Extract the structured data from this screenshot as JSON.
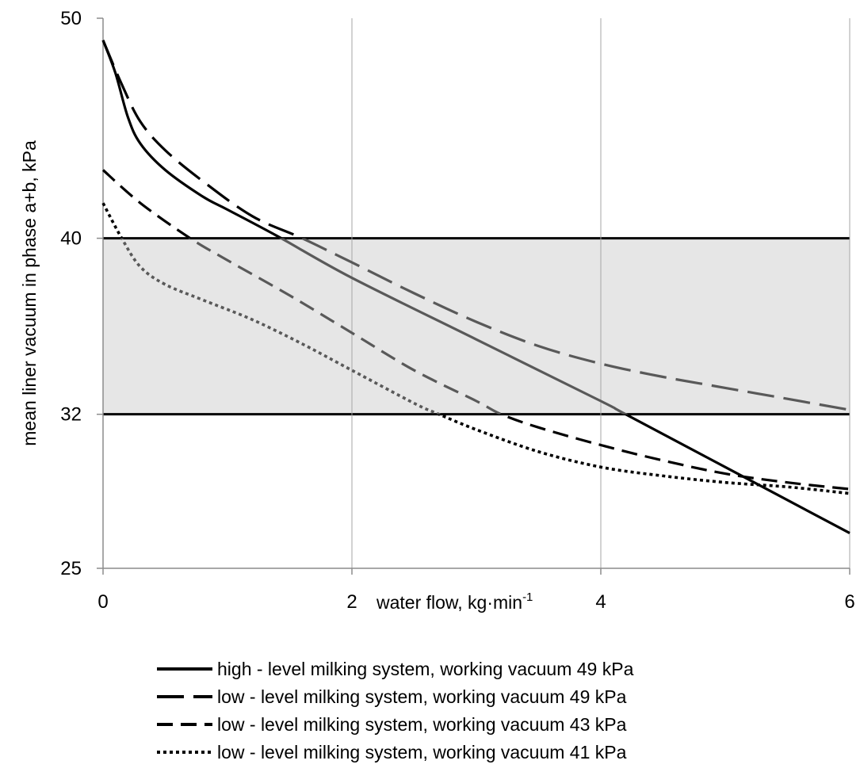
{
  "chart_data": {
    "type": "line",
    "xlabel": "water flow, kg·min",
    "xlabel_sup": "-1",
    "ylabel": "mean liner vacuum in phase a+b, kPa",
    "xlim": [
      0,
      6
    ],
    "ylim": [
      25,
      50
    ],
    "x_ticks": [
      "0",
      "2",
      "4",
      "6"
    ],
    "y_ticks": [
      "25",
      "32",
      "40",
      "50"
    ],
    "band": {
      "low": 32,
      "high": 40,
      "fill": "#e6e6e6",
      "line_color": "#000000"
    },
    "grid": "vertical",
    "legend_position": "bottom",
    "series": [
      {
        "name": "high - level milking system, working vacuum 49 kPa",
        "dash": "solid",
        "x": [
          0,
          0.1,
          0.2,
          0.3,
          0.5,
          0.8,
          1.0,
          1.4,
          2.0,
          3.0,
          4.0,
          4.2,
          5.0,
          6.0
        ],
        "y": [
          49,
          47.5,
          45.5,
          44.3,
          43.1,
          41.9,
          41.3,
          40.1,
          38.2,
          35.4,
          32.6,
          32.0,
          29.6,
          26.6
        ]
      },
      {
        "name": "low - level milking system, working vacuum 49 kPa",
        "dash": "longdash",
        "x": [
          0,
          0.15,
          0.3,
          0.5,
          0.8,
          1.2,
          1.6,
          2.0,
          2.5,
          3.0,
          3.5,
          4.0,
          4.5,
          5.0,
          5.5,
          6.0
        ],
        "y": [
          49,
          47,
          45.3,
          44.0,
          42.6,
          41.0,
          40.0,
          38.9,
          37.5,
          36.2,
          35.1,
          34.3,
          33.7,
          33.2,
          32.7,
          32.2
        ]
      },
      {
        "name": "low - level milking system, working vacuum 43 kPa",
        "dash": "dash",
        "x": [
          0,
          0.3,
          0.7,
          1.0,
          1.5,
          2.0,
          2.5,
          3.0,
          3.2,
          3.5,
          4.0,
          4.5,
          5.0,
          5.5,
          6.0
        ],
        "y": [
          43.1,
          41.6,
          40.0,
          39.0,
          37.4,
          35.7,
          34.0,
          32.6,
          32.0,
          31.4,
          30.6,
          29.9,
          29.3,
          28.9,
          28.6
        ]
      },
      {
        "name": "low - level milking system, working vacuum 41 kPa",
        "dash": "dot",
        "x": [
          0,
          0.15,
          0.3,
          0.5,
          0.8,
          1.2,
          1.6,
          2.0,
          2.5,
          2.7,
          3.0,
          3.5,
          4.0,
          4.5,
          5.0,
          5.5,
          6.0
        ],
        "y": [
          41.6,
          40.0,
          38.7,
          37.9,
          37.2,
          36.3,
          35.2,
          34.0,
          32.5,
          32.0,
          31.3,
          30.3,
          29.6,
          29.2,
          28.9,
          28.7,
          28.4
        ]
      }
    ]
  }
}
